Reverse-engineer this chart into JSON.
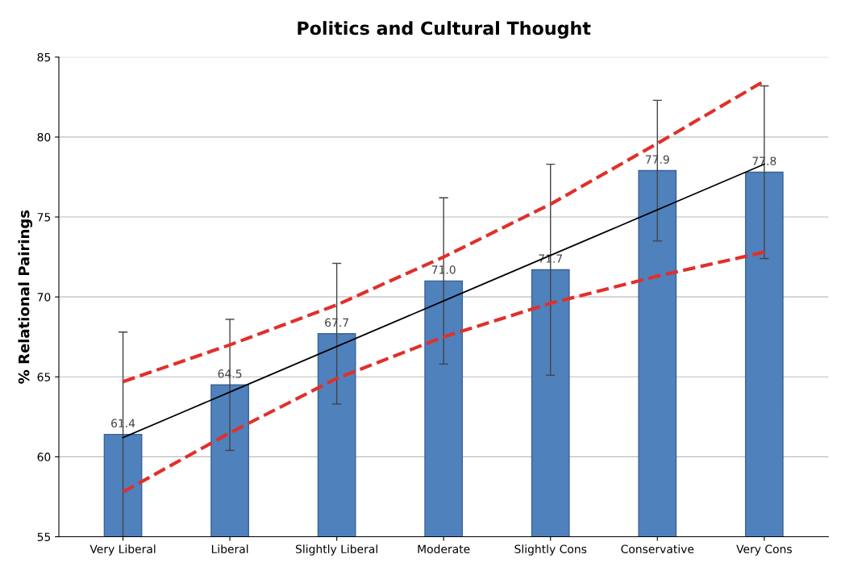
{
  "chart_data": {
    "type": "bar",
    "title": "Politics and Cultural Thought",
    "ylabel": "% Relational Pairings",
    "categories": [
      "Very Liberal",
      "Liberal",
      "Slightly Liberal",
      "Moderate",
      "Slightly Cons",
      "Conservative",
      "Very Cons"
    ],
    "series": [
      {
        "color": "#4f81bd",
        "values": [
          61.4,
          64.5,
          67.7,
          71.0,
          71.7,
          77.9,
          77.8
        ],
        "errors": [
          6.4,
          4.1,
          4.4,
          5.2,
          6.6,
          4.4,
          5.4
        ],
        "value_labels": [
          "61.4",
          "64.5",
          "67.7",
          "71.0",
          "71.7",
          "77.9",
          "77.8"
        ]
      },
      {
        "type": "line",
        "color": "#000000",
        "line_style": "solid",
        "values": [
          61.2,
          64.05,
          66.9,
          69.75,
          72.6,
          75.45,
          78.3
        ]
      },
      {
        "type": "line",
        "color": "#e0302a",
        "line_style": "dashed",
        "values": [
          64.7,
          67.0,
          69.5,
          72.5,
          75.8,
          79.6,
          83.5
        ]
      },
      {
        "type": "line",
        "color": "#e0302a",
        "line_style": "dashed",
        "values": [
          57.8,
          61.5,
          64.9,
          67.5,
          69.6,
          71.3,
          72.8
        ]
      }
    ],
    "ylim": [
      55,
      85
    ],
    "yticks": [
      55,
      60,
      65,
      70,
      75,
      80,
      85
    ],
    "grid": "y",
    "legend": false
  }
}
